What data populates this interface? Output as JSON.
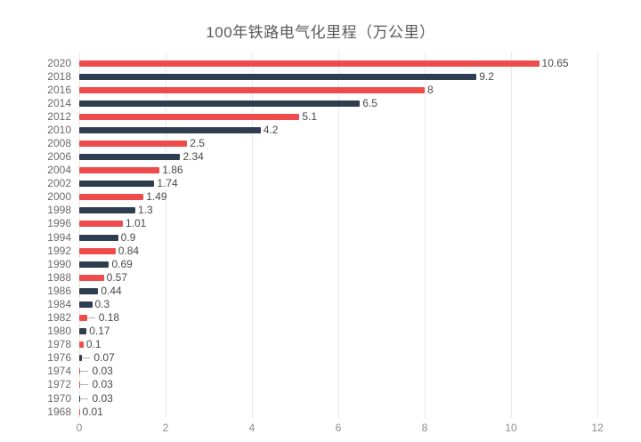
{
  "title": "100年铁路电气化里程（万公里）",
  "colors": {
    "red": "#ef4b4a",
    "navy": "#2f3d51",
    "gridline": "#e9e9e9",
    "title_text": "#595959",
    "year_label": "#696969",
    "value_label": "#4a4a4a",
    "axis_label": "#8a8a8a",
    "leader_line": "#b3b3b3",
    "background": "#ffffff"
  },
  "chart_data": {
    "type": "bar",
    "orientation": "horizontal",
    "title": "100年铁路电气化里程（万公里）",
    "xlabel": "",
    "ylabel": "",
    "xlim": [
      0,
      12
    ],
    "x_ticks": [
      0,
      2,
      4,
      6,
      8,
      10,
      12
    ],
    "grid": true,
    "legend": false,
    "categories": [
      "2020",
      "2018",
      "2016",
      "2014",
      "2012",
      "2010",
      "2008",
      "2006",
      "2004",
      "2002",
      "2000",
      "1998",
      "1996",
      "1994",
      "1992",
      "1990",
      "1988",
      "1986",
      "1984",
      "1982",
      "1980",
      "1978",
      "1976",
      "1974",
      "1972",
      "1970",
      "1968"
    ],
    "values": [
      10.65,
      9.2,
      8,
      6.5,
      5.1,
      4.2,
      2.5,
      2.34,
      1.86,
      1.74,
      1.49,
      1.3,
      1.01,
      0.9,
      0.84,
      0.69,
      0.57,
      0.44,
      0.3,
      0.18,
      0.17,
      0.1,
      0.07,
      0.03,
      0.03,
      0.03,
      0.01
    ],
    "value_labels": [
      "10.65",
      "9.2",
      "8",
      "6.5",
      "5.1",
      "4.2",
      "2.5",
      "2.34",
      "1.86",
      "1.74",
      "1.49",
      "1.3",
      "1.01",
      "0.9",
      "0.84",
      "0.69",
      "0.57",
      "0.44",
      "0.3",
      "0.18",
      "0.17",
      "0.1",
      "0.07",
      "0.03",
      "0.03",
      "0.03",
      "0.01"
    ],
    "bar_colors": [
      "red",
      "navy",
      "red",
      "navy",
      "red",
      "navy",
      "red",
      "navy",
      "red",
      "navy",
      "red",
      "navy",
      "red",
      "navy",
      "red",
      "navy",
      "red",
      "navy",
      "navy",
      "red",
      "navy",
      "red",
      "navy",
      "red",
      "red",
      "navy",
      "red"
    ],
    "leader_rows": [
      "1982",
      "1976",
      "1974",
      "1972",
      "1970"
    ]
  }
}
